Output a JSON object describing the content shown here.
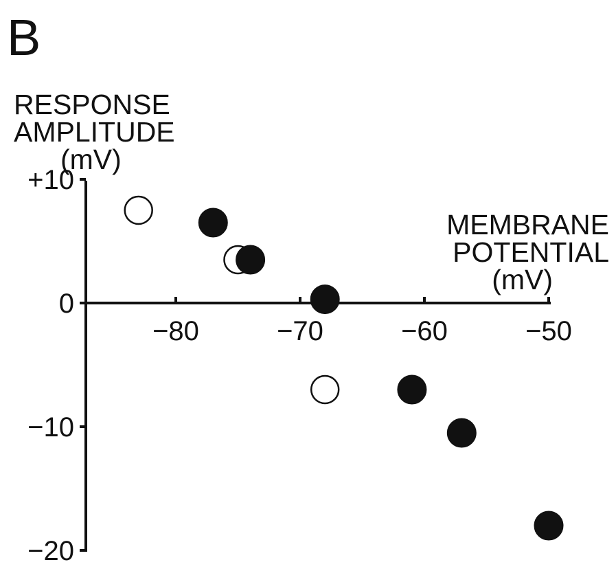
{
  "panel_label": "B",
  "chart_data": {
    "type": "scatter",
    "title": "",
    "ylabel_lines": [
      "RESPONSE",
      "AMPLITUDE",
      "(mV)"
    ],
    "xlabel_lines": [
      "MEMBRANE",
      "POTENTIAL",
      "(mV)"
    ],
    "xlim": [
      -86,
      -50
    ],
    "ylim": [
      -20,
      10
    ],
    "x_ticks": [
      -80,
      -70,
      -60,
      -50
    ],
    "x_tick_labels": [
      "−80",
      "−70",
      "−60",
      "−50"
    ],
    "y_ticks": [
      10,
      0,
      -10,
      -20
    ],
    "y_tick_labels": [
      "+10",
      "0",
      "−10",
      "−20"
    ],
    "grid": false,
    "legend": "none",
    "series": [
      {
        "marker": "open-circle",
        "color": "#111111",
        "points": [
          [
            -83,
            7.5
          ],
          [
            -75,
            3.5
          ],
          [
            -68,
            -7
          ]
        ]
      },
      {
        "marker": "filled-circle",
        "color": "#111111",
        "points": [
          [
            -77,
            6.5
          ],
          [
            -74,
            3.5
          ],
          [
            -68,
            0.3
          ],
          [
            -61,
            -7
          ],
          [
            -57,
            -10.5
          ],
          [
            -50,
            -18
          ]
        ]
      }
    ]
  }
}
